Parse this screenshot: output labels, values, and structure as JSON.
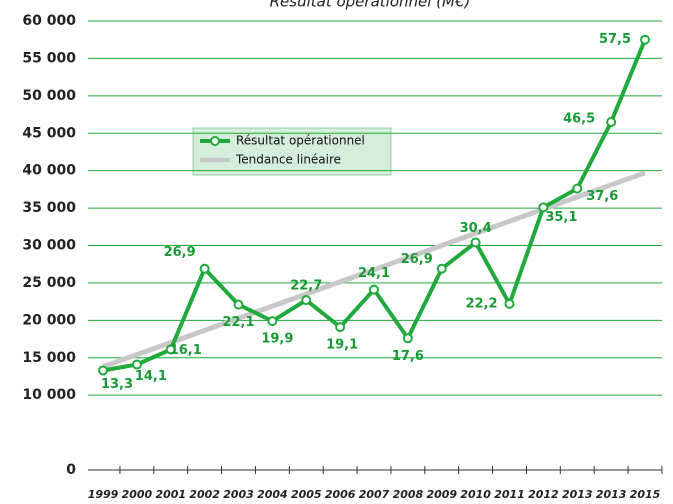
{
  "chart_data": {
    "type": "line",
    "title": "Résultat opérationnel (M€)",
    "categories": [
      "1999",
      "2000",
      "2001",
      "2002",
      "2003",
      "2004",
      "2005",
      "2006",
      "2007",
      "2008",
      "2009",
      "2010",
      "2011",
      "2012",
      "2013",
      "2013",
      "2015"
    ],
    "series": [
      {
        "name": "Résultat opérationnel",
        "color": "#1faa3b",
        "values": [
          13300,
          14100,
          16100,
          26900,
          22100,
          19900,
          22700,
          19100,
          24100,
          17600,
          26900,
          30400,
          22200,
          35100,
          37600,
          46500,
          57500
        ],
        "value_labels": [
          "13,3",
          "14,1",
          "16,1",
          "26,9",
          "22,1",
          "19,9",
          "22,7",
          "19,1",
          "24,1",
          "17,6",
          "26,9",
          "30,4",
          "22,2",
          "35,1",
          "37,6",
          "46,5",
          "57,5"
        ]
      },
      {
        "name": "Tendance linéaire",
        "color": "#c8c8c8",
        "values": [
          13800,
          15420,
          17040,
          18660,
          20280,
          21900,
          23520,
          25140,
          26760,
          28380,
          30000,
          31620,
          33240,
          34860,
          36480,
          38100,
          39720
        ]
      }
    ],
    "ylim": [
      0,
      60000
    ],
    "yticks": [
      {
        "value": 0,
        "label": "0"
      },
      {
        "value": 10000,
        "label": "10 000"
      },
      {
        "value": 15000,
        "label": "15 000"
      },
      {
        "value": 20000,
        "label": "20 000"
      },
      {
        "value": 25000,
        "label": "25 000"
      },
      {
        "value": 30000,
        "label": "30 000"
      },
      {
        "value": 35000,
        "label": "35 000"
      },
      {
        "value": 40000,
        "label": "40 000"
      },
      {
        "value": 45000,
        "label": "45 000"
      },
      {
        "value": 50000,
        "label": "50 000"
      },
      {
        "value": 55000,
        "label": "55 000"
      },
      {
        "value": 60000,
        "label": "60 000"
      }
    ],
    "grid": true
  }
}
